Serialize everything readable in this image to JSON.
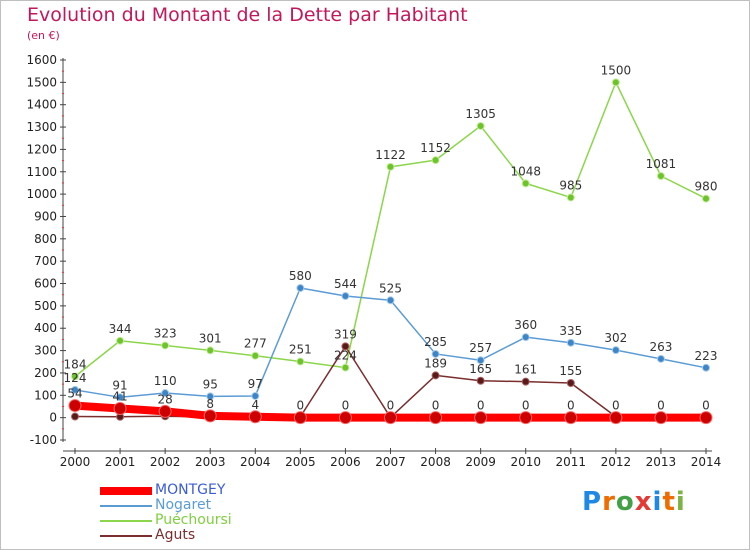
{
  "page": {
    "title": "Evolution du Montant de la Dette par Habitant",
    "unit": "(en €)",
    "logo_letters": [
      "P",
      "r",
      "o",
      "x",
      "i",
      "t",
      "i"
    ],
    "logo_colors": [
      "#1e88e5",
      "#ef6c00",
      "#43a047",
      "#e53935",
      "#1e88e5",
      "#ef6c00",
      "#7cb342"
    ]
  },
  "chart_data": {
    "type": "line",
    "title": "Evolution du Montant de la Dette par Habitant",
    "ylabel": "(en €)",
    "xlabel": "",
    "categories": [
      "2000",
      "2001",
      "2002",
      "2003",
      "2004",
      "2005",
      "2006",
      "2007",
      "2008",
      "2009",
      "2010",
      "2011",
      "2012",
      "2013",
      "2014"
    ],
    "ylim": [
      -100,
      1600
    ],
    "yticks": [
      "-100",
      "0",
      "100",
      "200",
      "300",
      "400",
      "500",
      "600",
      "700",
      "800",
      "900",
      "1000",
      "1100",
      "1200",
      "1300",
      "1400",
      "1500",
      "1600"
    ],
    "grid": false,
    "legend_position": "bottom-left",
    "series": [
      {
        "name": "MONTGEY",
        "color": "#ff0000",
        "values": [
          54,
          41,
          28,
          8,
          4,
          0,
          0,
          0,
          0,
          0,
          0,
          0,
          0,
          0,
          0
        ],
        "labels": [
          "54",
          "41",
          "28",
          "8",
          "4",
          "0",
          "0",
          "0",
          "0",
          "0",
          "0",
          "0",
          "0",
          "0",
          "0"
        ]
      },
      {
        "name": "Nogaret",
        "color": "#5b9bd5",
        "values": [
          124,
          91,
          110,
          95,
          97,
          580,
          544,
          525,
          285,
          257,
          360,
          335,
          302,
          263,
          223
        ],
        "labels": [
          "124",
          "91",
          "110",
          "95",
          "97",
          "580",
          "544",
          "525",
          "285",
          "257",
          "360",
          "335",
          "302",
          "263",
          "223"
        ]
      },
      {
        "name": "Puéchoursi",
        "color": "#8bd64a",
        "values": [
          184,
          344,
          323,
          301,
          277,
          251,
          224,
          1122,
          1152,
          1305,
          1048,
          985,
          1500,
          1081,
          980
        ],
        "labels": [
          "184",
          "344",
          "323",
          "301",
          "277",
          "251",
          "224",
          "1122",
          "1152",
          "1305",
          "1048",
          "985",
          "1500",
          "1081",
          "980"
        ]
      },
      {
        "name": "Aguts",
        "color": "#7a2e2e",
        "values": [
          5,
          4,
          6,
          3,
          4,
          4,
          319,
          1,
          189,
          165,
          161,
          155,
          4,
          6,
          4
        ],
        "labels": [
          "",
          "",
          "",
          "",
          "",
          "",
          "319",
          "",
          "189",
          "165",
          "161",
          "155",
          "",
          "",
          ""
        ]
      }
    ]
  }
}
